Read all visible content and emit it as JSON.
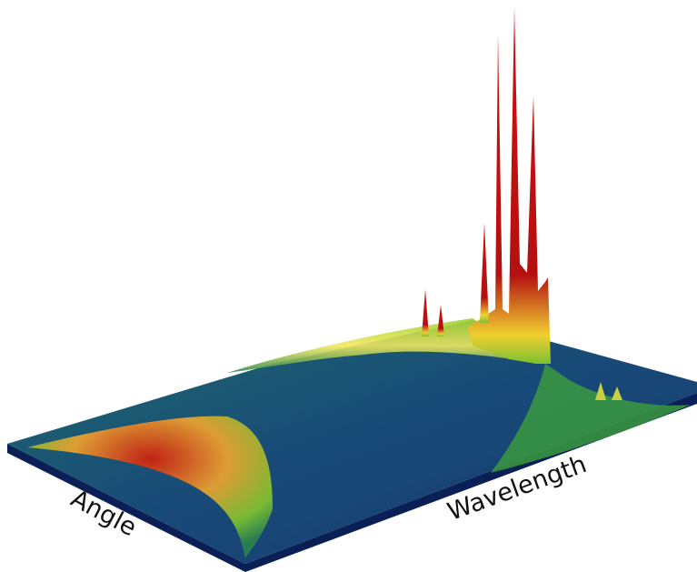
{
  "chart_data": {
    "type": "surface",
    "x_label": "Angle",
    "y_label": "Wavelength"
  }
}
